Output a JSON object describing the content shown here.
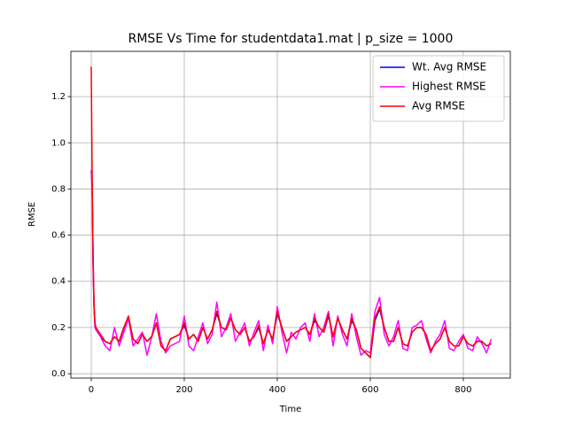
{
  "chart_data": {
    "type": "line",
    "title": "RMSE Vs Time for studentdata1.mat | p_size = 1000",
    "x_label": "Time",
    "y_label": "RMSE",
    "x": [
      0,
      2,
      4,
      6,
      8,
      10,
      20,
      30,
      40,
      50,
      60,
      70,
      80,
      90,
      100,
      110,
      120,
      130,
      140,
      150,
      160,
      170,
      180,
      190,
      200,
      210,
      220,
      230,
      240,
      250,
      260,
      270,
      280,
      290,
      300,
      310,
      320,
      330,
      340,
      350,
      360,
      370,
      380,
      390,
      400,
      410,
      420,
      430,
      440,
      450,
      460,
      470,
      480,
      490,
      500,
      510,
      520,
      530,
      540,
      550,
      560,
      570,
      580,
      590,
      600,
      610,
      620,
      630,
      640,
      650,
      660,
      670,
      680,
      690,
      700,
      710,
      720,
      730,
      740,
      750,
      760,
      770,
      780,
      790,
      800,
      810,
      820,
      830,
      840,
      850,
      860
    ],
    "series": [
      {
        "name": "Wt. Avg RMSE",
        "color": "#0000ff",
        "values": [
          0.88,
          0.82,
          0.48,
          0.29,
          0.21,
          0.2,
          0.16,
          0.14,
          0.13,
          0.16,
          0.14,
          0.2,
          0.24,
          0.15,
          0.13,
          0.17,
          0.14,
          0.16,
          0.22,
          0.12,
          0.1,
          0.15,
          0.16,
          0.17,
          0.21,
          0.15,
          0.17,
          0.14,
          0.2,
          0.15,
          0.19,
          0.26,
          0.2,
          0.19,
          0.24,
          0.19,
          0.17,
          0.2,
          0.14,
          0.16,
          0.2,
          0.13,
          0.19,
          0.15,
          0.26,
          0.2,
          0.14,
          0.16,
          0.18,
          0.19,
          0.2,
          0.17,
          0.23,
          0.2,
          0.18,
          0.25,
          0.16,
          0.24,
          0.19,
          0.15,
          0.23,
          0.19,
          0.11,
          0.09,
          0.07,
          0.23,
          0.28,
          0.2,
          0.14,
          0.14,
          0.2,
          0.13,
          0.12,
          0.18,
          0.2,
          0.2,
          0.17,
          0.1,
          0.13,
          0.15,
          0.2,
          0.14,
          0.12,
          0.12,
          0.16,
          0.13,
          0.12,
          0.14,
          0.14,
          0.12,
          0.13
        ]
      },
      {
        "name": "Highest RMSE",
        "color": "#ff00ff",
        "values": [
          0.88,
          0.8,
          0.45,
          0.28,
          0.2,
          0.19,
          0.16,
          0.12,
          0.1,
          0.2,
          0.12,
          0.18,
          0.24,
          0.12,
          0.15,
          0.18,
          0.08,
          0.16,
          0.26,
          0.14,
          0.09,
          0.12,
          0.13,
          0.14,
          0.25,
          0.12,
          0.1,
          0.16,
          0.22,
          0.13,
          0.17,
          0.31,
          0.16,
          0.2,
          0.26,
          0.14,
          0.18,
          0.22,
          0.12,
          0.18,
          0.23,
          0.1,
          0.21,
          0.13,
          0.29,
          0.18,
          0.09,
          0.18,
          0.15,
          0.2,
          0.22,
          0.14,
          0.26,
          0.16,
          0.2,
          0.27,
          0.12,
          0.25,
          0.17,
          0.12,
          0.26,
          0.16,
          0.08,
          0.1,
          0.09,
          0.27,
          0.33,
          0.17,
          0.12,
          0.16,
          0.23,
          0.11,
          0.1,
          0.2,
          0.21,
          0.23,
          0.15,
          0.09,
          0.14,
          0.17,
          0.23,
          0.11,
          0.1,
          0.14,
          0.17,
          0.11,
          0.1,
          0.16,
          0.13,
          0.09,
          0.15
        ]
      },
      {
        "name": "Avg RMSE",
        "color": "#ff0000",
        "values": [
          1.33,
          0.85,
          0.5,
          0.3,
          0.22,
          0.2,
          0.17,
          0.14,
          0.13,
          0.16,
          0.14,
          0.2,
          0.25,
          0.15,
          0.13,
          0.17,
          0.14,
          0.16,
          0.22,
          0.12,
          0.1,
          0.15,
          0.16,
          0.17,
          0.22,
          0.15,
          0.17,
          0.14,
          0.2,
          0.15,
          0.19,
          0.27,
          0.2,
          0.19,
          0.24,
          0.19,
          0.17,
          0.2,
          0.14,
          0.16,
          0.21,
          0.13,
          0.19,
          0.15,
          0.27,
          0.2,
          0.14,
          0.16,
          0.18,
          0.19,
          0.2,
          0.17,
          0.24,
          0.2,
          0.18,
          0.26,
          0.16,
          0.24,
          0.19,
          0.15,
          0.24,
          0.19,
          0.11,
          0.09,
          0.07,
          0.24,
          0.29,
          0.2,
          0.14,
          0.14,
          0.2,
          0.13,
          0.12,
          0.18,
          0.2,
          0.2,
          0.17,
          0.1,
          0.13,
          0.15,
          0.2,
          0.14,
          0.12,
          0.12,
          0.16,
          0.13,
          0.12,
          0.14,
          0.14,
          0.12,
          0.13
        ]
      }
    ],
    "xlim": [
      -43.8,
      901
    ],
    "ylim": [
      -0.019,
      1.396
    ],
    "xticks": [
      0,
      200,
      400,
      600,
      800
    ],
    "yticks": [
      {
        "value": 0,
        "label": "0.0"
      },
      0.2,
      0.4,
      0.6,
      0.8,
      {
        "value": 1,
        "label": "1.0"
      },
      1.2
    ],
    "grid": true,
    "legend": "upper-right"
  }
}
